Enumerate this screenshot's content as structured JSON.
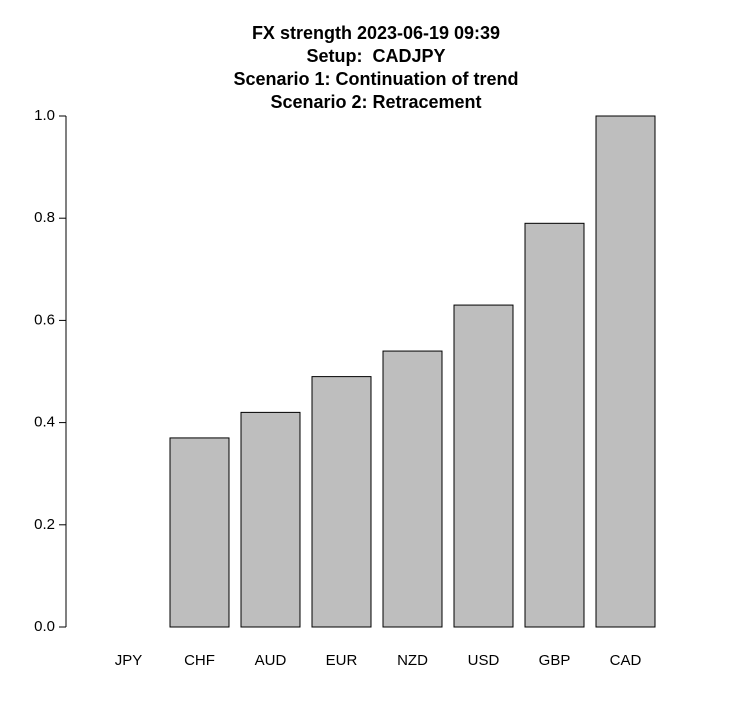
{
  "chart_data": {
    "type": "bar",
    "title": [
      "FX strength 2023-06-19 09:39",
      "Setup:  CADJPY",
      "Scenario 1: Continuation of trend",
      "Scenario 2: Retracement"
    ],
    "categories": [
      "JPY",
      "CHF",
      "AUD",
      "EUR",
      "NZD",
      "USD",
      "GBP",
      "CAD"
    ],
    "values": [
      0,
      0.37,
      0.42,
      0.49,
      0.54,
      0.63,
      0.79,
      1.0
    ],
    "color": "#bebebe",
    "ylim": [
      0,
      1
    ],
    "yticks": [
      {
        "value": 0,
        "label": "0.0"
      },
      0.2,
      0.4,
      0.6,
      0.8,
      {
        "value": 1,
        "label": "1.0"
      }
    ]
  }
}
